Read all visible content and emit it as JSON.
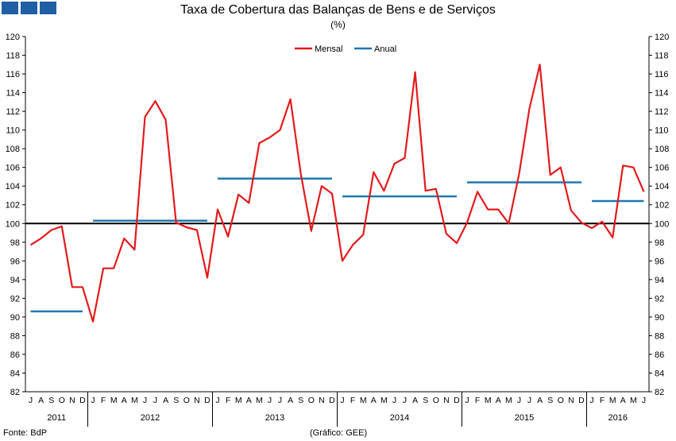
{
  "header": {
    "title": "Taxa de Cobertura das Balanças de Bens e de Serviços",
    "subtitle": "(%)"
  },
  "footer": {
    "source": "Fonte: BdP",
    "credit": "(Gráfico: GEE)"
  },
  "colors": {
    "mensal": "#e31a1c",
    "anual": "#1f78b4",
    "reference": "#000000",
    "logo": "#1f5fa5"
  },
  "chart_data": {
    "type": "line",
    "title": "Taxa de Cobertura das Balanças de Bens e de Serviços",
    "subtitle": "(%)",
    "ylim": [
      82,
      120
    ],
    "y_tick_step": 2,
    "y_axes": "left-and-right",
    "grid": false,
    "legend": {
      "position": "top-center",
      "entries": [
        "Mensal",
        "Anual"
      ]
    },
    "reference_line": 100,
    "months": [
      "J",
      "A",
      "S",
      "O",
      "N",
      "D",
      "J",
      "F",
      "M",
      "A",
      "M",
      "J",
      "J",
      "A",
      "S",
      "O",
      "N",
      "D",
      "J",
      "F",
      "M",
      "A",
      "M",
      "J",
      "J",
      "A",
      "S",
      "O",
      "N",
      "D",
      "J",
      "F",
      "M",
      "A",
      "M",
      "J",
      "J",
      "A",
      "S",
      "O",
      "N",
      "D",
      "J",
      "F",
      "M",
      "A",
      "M",
      "J",
      "J",
      "A",
      "S",
      "O",
      "N",
      "D",
      "J",
      "F",
      "M",
      "A",
      "M",
      "J"
    ],
    "years": [
      {
        "label": "2011",
        "count": 6
      },
      {
        "label": "2012",
        "count": 12
      },
      {
        "label": "2013",
        "count": 12
      },
      {
        "label": "2014",
        "count": 12
      },
      {
        "label": "2015",
        "count": 12
      },
      {
        "label": "2016",
        "count": 6
      }
    ],
    "series": [
      {
        "name": "Mensal",
        "kind": "line",
        "values": [
          97.7,
          98.4,
          99.3,
          99.7,
          93.2,
          93.2,
          89.5,
          95.2,
          95.2,
          98.4,
          97.2,
          111.4,
          113.1,
          111.1,
          100.1,
          99.6,
          99.3,
          94.2,
          101.5,
          98.6,
          103.1,
          102.2,
          108.6,
          109.2,
          110.0,
          113.3,
          105.3,
          99.2,
          104.0,
          103.2,
          96.0,
          97.7,
          98.8,
          105.5,
          103.5,
          106.4,
          107.0,
          116.2,
          103.5,
          103.7,
          98.9,
          97.9,
          100.1,
          103.4,
          101.5,
          101.5,
          100.0,
          105.3,
          112.3,
          117.0,
          105.2,
          106.0,
          101.4,
          100.1,
          99.5,
          100.2,
          98.5,
          106.2,
          106.0,
          103.4
        ]
      },
      {
        "name": "Anual",
        "kind": "segments",
        "segments": [
          {
            "year": "2011",
            "value": 90.6
          },
          {
            "year": "2012",
            "value": 100.3
          },
          {
            "year": "2013",
            "value": 104.8
          },
          {
            "year": "2014",
            "value": 102.9
          },
          {
            "year": "2015",
            "value": 104.4
          },
          {
            "year": "2016",
            "value": 102.4
          }
        ]
      }
    ]
  }
}
